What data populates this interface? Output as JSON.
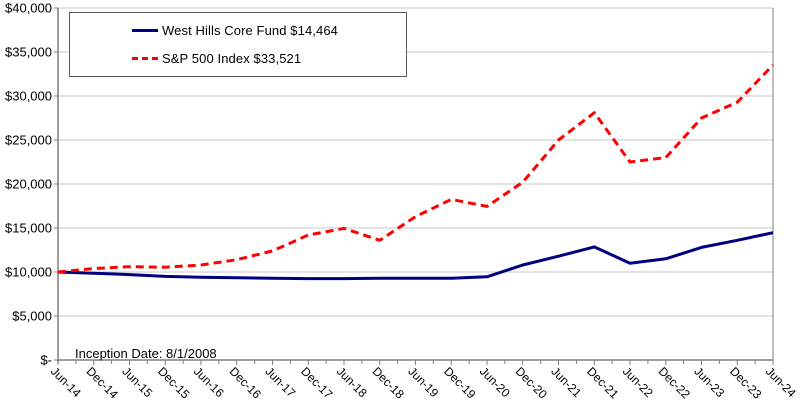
{
  "chart_data": {
    "type": "line",
    "title": "",
    "xlabel": "",
    "ylabel": "",
    "categories": [
      "Jun-14",
      "Dec-14",
      "Jun-15",
      "Dec-15",
      "Jun-16",
      "Dec-16",
      "Jun-17",
      "Dec-17",
      "Jun-18",
      "Dec-18",
      "Jun-19",
      "Dec-19",
      "Jun-20",
      "Dec-20",
      "Jun-21",
      "Dec-21",
      "Jun-22",
      "Dec-22",
      "Jun-23",
      "Dec-23",
      "Jun-24"
    ],
    "series": [
      {
        "id": "west-hills-core-fund",
        "name": "West Hills Core Fund $14,464",
        "color": "#000080",
        "line_style": "solid",
        "final_value": 14464,
        "values": [
          10000,
          9850,
          9700,
          9500,
          9400,
          9350,
          9300,
          9250,
          9250,
          9300,
          9300,
          9300,
          9450,
          10800,
          11800,
          12850,
          11000,
          11500,
          12800,
          13600,
          14464
        ]
      },
      {
        "id": "sp500-index",
        "name": "S&P 500 Index $33,521",
        "color": "#ff0000",
        "line_style": "dashed",
        "final_value": 33521,
        "values": [
          10000,
          10400,
          10600,
          10550,
          10800,
          11400,
          12400,
          14200,
          14950,
          13600,
          16300,
          18250,
          17450,
          20200,
          25000,
          28100,
          22500,
          23000,
          27500,
          29300,
          33521
        ]
      }
    ],
    "ylim": [
      0,
      40000
    ],
    "ytick_interval": 5000,
    "ytick_labels": [
      "$-",
      "$5,000",
      "$10,000",
      "$15,000",
      "$20,000",
      "$25,000",
      "$30,000",
      "$35,000",
      "$40,000"
    ],
    "xtick_minor_interval_months": 3,
    "grid": "horizontal",
    "legend_position": "top-left",
    "annotation": "Inception Date: 8/1/2008"
  },
  "colors": {
    "background": "#ffffff",
    "gridline": "#c9c9c9",
    "axis": "#7f7f7f",
    "text": "#000000",
    "legend_border": "#595959"
  }
}
